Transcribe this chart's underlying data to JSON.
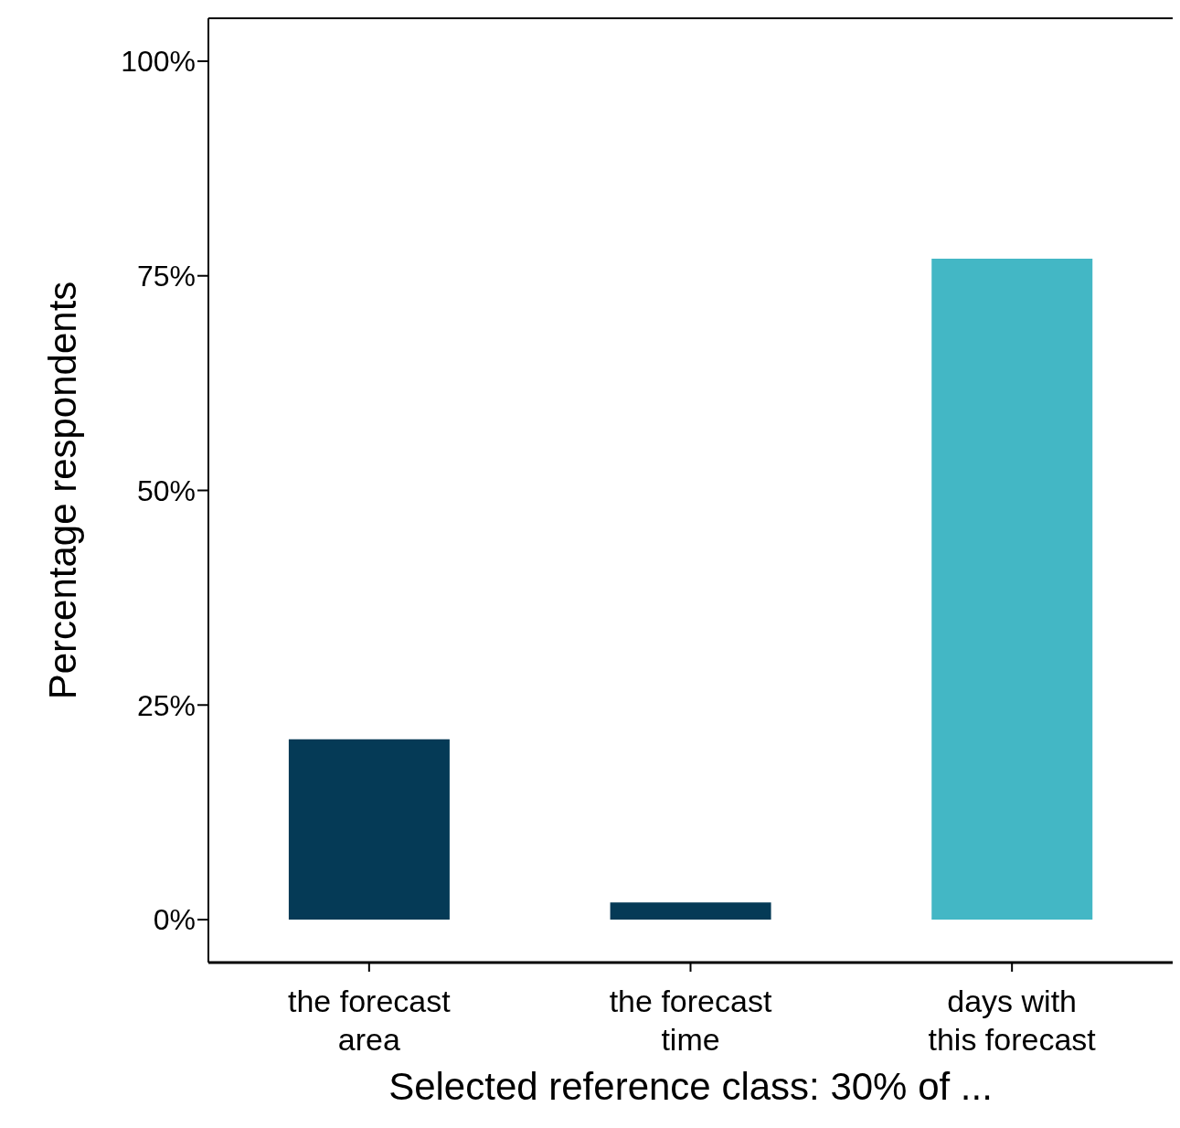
{
  "chart_data": {
    "type": "bar",
    "xlabel": "Selected reference class: 30% of ...",
    "ylabel": "Percentage respondents",
    "categories": [
      "the forecast area",
      "the forecast time",
      "days with this forecast"
    ],
    "values": [
      21,
      2,
      77
    ],
    "colors": [
      "#053a56",
      "#053a56",
      "#43b7c5"
    ],
    "ylim": [
      -5,
      105
    ],
    "yticks": [
      {
        "value": 0,
        "label": "0%"
      },
      {
        "value": 25,
        "label": "25%"
      },
      {
        "value": 50,
        "label": "50%"
      },
      {
        "value": 75,
        "label": "75%"
      },
      {
        "value": 100,
        "label": "100%"
      }
    ],
    "grid": false,
    "legend": false
  }
}
